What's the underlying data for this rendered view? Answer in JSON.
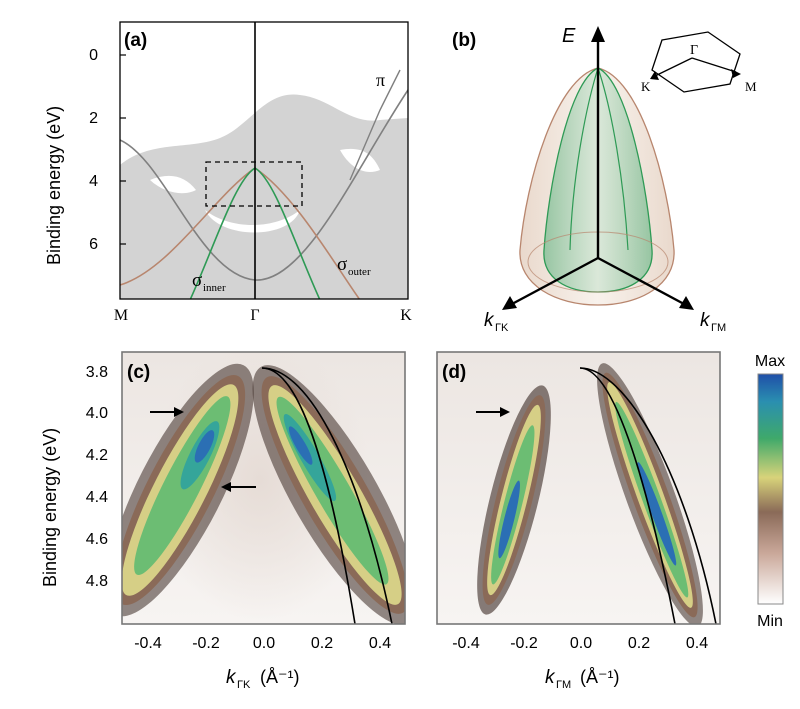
{
  "panels": {
    "a": {
      "label": "(a)",
      "ylabel": "Binding energy (eV)",
      "yticks": [
        "0",
        "2",
        "4",
        "6"
      ],
      "xticks": [
        "M",
        "Γ",
        "K"
      ],
      "labels": {
        "pi": "π",
        "sigma": "σ",
        "inner": "inner",
        "outer": "outer"
      }
    },
    "b": {
      "label": "(b)",
      "axis_e": "E",
      "k": "k",
      "sub_gk": "ΓK",
      "sub_gm": "ΓM",
      "bz_labels": {
        "gamma": "Γ",
        "k": "K",
        "m": "M"
      }
    },
    "c": {
      "label": "(c)",
      "ylabel": "Binding energy (eV)",
      "yticks": [
        "3.8",
        "4.0",
        "4.2",
        "4.4",
        "4.6",
        "4.8"
      ],
      "xticks": [
        "-0.4",
        "-0.2",
        "0.0",
        "0.2",
        "0.4"
      ],
      "xlabel_k": "k",
      "xlabel_sub": "ΓK",
      "xlabel_unit": "(Å⁻¹)"
    },
    "d": {
      "label": "(d)",
      "xticks": [
        "-0.4",
        "-0.2",
        "0.0",
        "0.2",
        "0.4"
      ],
      "xlabel_k": "k",
      "xlabel_sub": "ΓM",
      "xlabel_unit": "(Å⁻¹)"
    },
    "colorbar": {
      "max": "Max",
      "min": "Min"
    }
  },
  "colors": {
    "gray_band": "#d3d3d3",
    "brown": "#b8866e",
    "green": "#2e9a55",
    "dispersion": "#808080"
  }
}
